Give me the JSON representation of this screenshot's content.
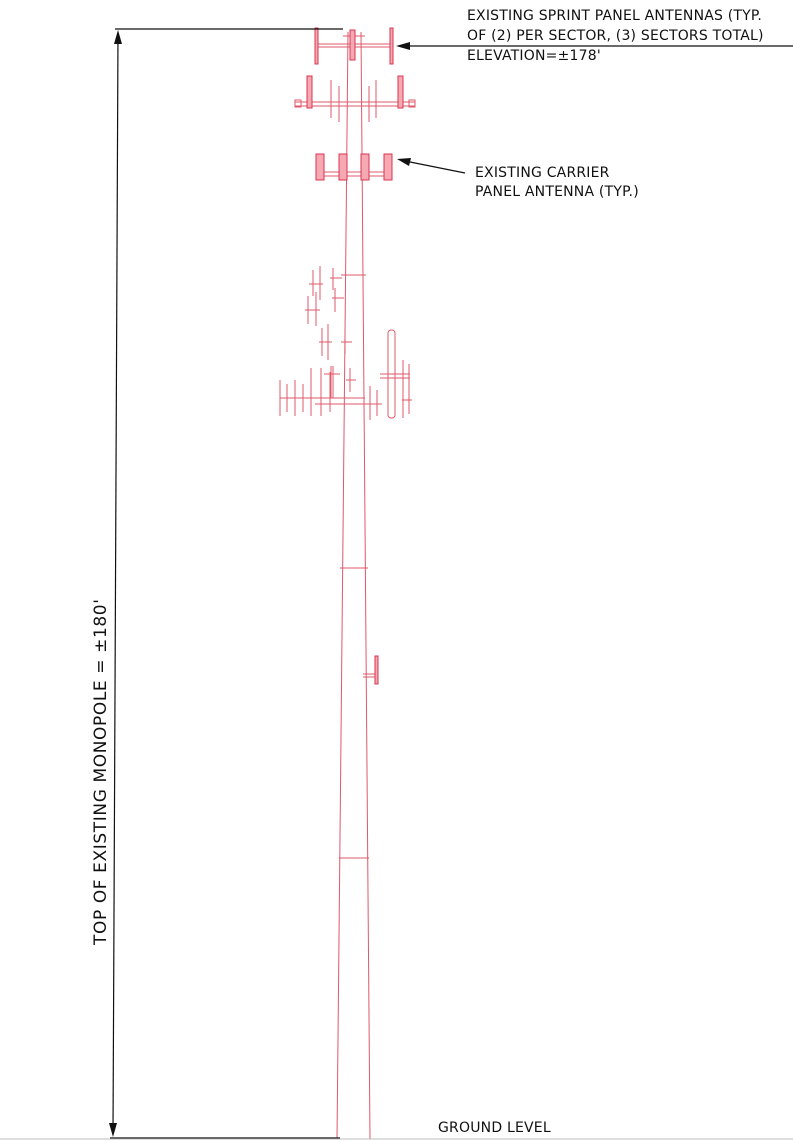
{
  "labels": {
    "sprint_line1": "EXISTING SPRINT PANEL ANTENNAS (TYP.",
    "sprint_line2": "OF (2) PER SECTOR, (3) SECTORS TOTAL)",
    "sprint_line3": "ELEVATION=±178'",
    "carrier_line1": "EXISTING CARRIER",
    "carrier_line2": "PANEL ANTENNA (TYP.)",
    "dimension": "TOP OF EXISTING MONOPOLE = ±180'",
    "ground": "GROUND LEVEL"
  },
  "colors": {
    "structure": "#e0586a",
    "antenna_fill": "#f6a8b3",
    "annotation": "#111111"
  }
}
